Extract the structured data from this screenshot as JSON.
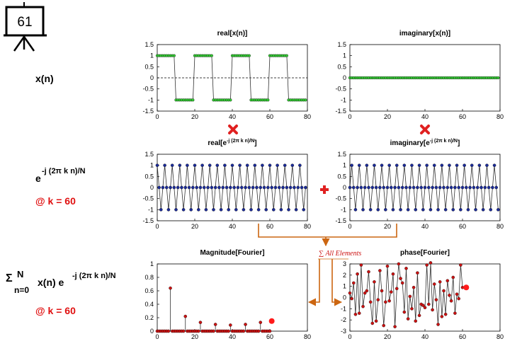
{
  "board_number": "61",
  "labels": {
    "xn": "x(n)",
    "exp_base": "e",
    "exp_sup": "-j (2π k n)/N",
    "k1": "@ k = 60",
    "sigma": "Σ",
    "sigma_sup": "N",
    "sigma_sub": "n=0",
    "sum_expr": "x(n) e",
    "sum_sup": "-j (2π k n)/N",
    "k2": "@ k = 60"
  },
  "flow_label": "∑ All Elements",
  "colors": {
    "input_marker": "#33cc33",
    "kernel_marker": "#1a2a99",
    "result_marker": "#cc1111",
    "highlight": "#ff1a1a",
    "arrow": "#cc6611",
    "operator": "#e02020"
  },
  "icons": {
    "multiply_top": "multiply-icon",
    "multiply_right": "multiply-icon",
    "plus": "plus-icon",
    "board": "presentation-board-icon"
  },
  "chart_data": [
    {
      "id": "c1",
      "type": "stem",
      "title_main": "real[x(n)]",
      "title_sup": "",
      "xlim": [
        0,
        80
      ],
      "ylim": [
        -1.5,
        1.5
      ],
      "xticks": [
        "0",
        "20",
        "40",
        "60",
        "80"
      ],
      "yticks": [
        "1.5",
        "1",
        "0.5",
        "0",
        "-0.5",
        "-1",
        "-1.5"
      ],
      "x_start": 0,
      "values": [
        1,
        1,
        1,
        1,
        1,
        1,
        1,
        1,
        1,
        1,
        -1,
        -1,
        -1,
        -1,
        -1,
        -1,
        -1,
        -1,
        -1,
        -1,
        1,
        1,
        1,
        1,
        1,
        1,
        1,
        1,
        1,
        1,
        -1,
        -1,
        -1,
        -1,
        -1,
        -1,
        -1,
        -1,
        -1,
        -1,
        1,
        1,
        1,
        1,
        1,
        1,
        1,
        1,
        1,
        1,
        -1,
        -1,
        -1,
        -1,
        -1,
        -1,
        -1,
        -1,
        -1,
        -1,
        1,
        1,
        1,
        1,
        1,
        1,
        1,
        1,
        1,
        1,
        -1,
        -1,
        -1,
        -1,
        -1,
        -1,
        -1,
        -1,
        -1,
        -1
      ],
      "zero_line": true
    },
    {
      "id": "c2",
      "type": "stem",
      "title_main": "imaginary[x(n)]",
      "title_sup": "",
      "xlim": [
        0,
        80
      ],
      "ylim": [
        -1.5,
        1.5
      ],
      "xticks": [
        "0",
        "20",
        "40",
        "60",
        "80"
      ],
      "yticks": [
        "1.5",
        "1",
        "0.5",
        "0",
        "-0.5",
        "-1",
        "-1.5"
      ],
      "x_start": 0,
      "values": [
        0,
        0,
        0,
        0,
        0,
        0,
        0,
        0,
        0,
        0,
        0,
        0,
        0,
        0,
        0,
        0,
        0,
        0,
        0,
        0,
        0,
        0,
        0,
        0,
        0,
        0,
        0,
        0,
        0,
        0,
        0,
        0,
        0,
        0,
        0,
        0,
        0,
        0,
        0,
        0,
        0,
        0,
        0,
        0,
        0,
        0,
        0,
        0,
        0,
        0,
        0,
        0,
        0,
        0,
        0,
        0,
        0,
        0,
        0,
        0,
        0,
        0,
        0,
        0,
        0,
        0,
        0,
        0,
        0,
        0,
        0,
        0,
        0,
        0,
        0,
        0,
        0,
        0,
        0,
        0
      ],
      "zero_line": true
    },
    {
      "id": "c3",
      "type": "stem",
      "title_main": "real[e",
      "title_sup": "-j (2π k n)/N",
      "xlim": [
        0,
        80
      ],
      "ylim": [
        -1.5,
        1.5
      ],
      "xticks": [
        "0",
        "20",
        "40",
        "60",
        "80"
      ],
      "yticks": [
        "1.5",
        "1",
        "0.5",
        "0",
        "-0.5",
        "-1",
        "-1.5"
      ],
      "x_start": 0,
      "values": [
        1,
        0,
        -1,
        0,
        1,
        0,
        -1,
        0,
        1,
        0,
        -1,
        0,
        1,
        0,
        -1,
        0,
        1,
        0,
        -1,
        0,
        1,
        0,
        -1,
        0,
        1,
        0,
        -1,
        0,
        1,
        0,
        -1,
        0,
        1,
        0,
        -1,
        0,
        1,
        0,
        -1,
        0,
        1,
        0,
        -1,
        0,
        1,
        0,
        -1,
        0,
        1,
        0,
        -1,
        0,
        1,
        0,
        -1,
        0,
        1,
        0,
        -1,
        0,
        1,
        0,
        -1,
        0,
        1,
        0,
        -1,
        0,
        1,
        0,
        -1,
        0,
        1,
        0,
        -1,
        0,
        1,
        0,
        -1,
        0
      ],
      "zero_line": false
    },
    {
      "id": "c4",
      "type": "stem",
      "title_main": "imaginary[e",
      "title_sup": "-j (2π k n)/N",
      "xlim": [
        0,
        80
      ],
      "ylim": [
        -1.5,
        1.5
      ],
      "xticks": [
        "0",
        "20",
        "40",
        "60",
        "80"
      ],
      "yticks": [
        "1.5",
        "1",
        "0.5",
        "0",
        "-0.5",
        "-1",
        "-1.5"
      ],
      "x_start": 0,
      "values": [
        0,
        1,
        0,
        -1,
        0,
        1,
        0,
        -1,
        0,
        1,
        0,
        -1,
        0,
        1,
        0,
        -1,
        0,
        1,
        0,
        -1,
        0,
        1,
        0,
        -1,
        0,
        1,
        0,
        -1,
        0,
        1,
        0,
        -1,
        0,
        1,
        0,
        -1,
        0,
        1,
        0,
        -1,
        0,
        1,
        0,
        -1,
        0,
        1,
        0,
        -1,
        0,
        1,
        0,
        -1,
        0,
        1,
        0,
        -1,
        0,
        1,
        0,
        -1,
        0,
        1,
        0,
        -1,
        0,
        1,
        0,
        -1,
        0,
        1,
        0,
        -1,
        0,
        1,
        0,
        -1,
        0,
        1,
        0,
        -1
      ],
      "zero_line": false
    },
    {
      "id": "c5",
      "type": "stem",
      "title_main": "Magnitude[Fourier]",
      "title_sup": "",
      "xlim": [
        0,
        80
      ],
      "ylim": [
        0,
        1
      ],
      "xticks": [
        "0",
        "20",
        "40",
        "60",
        "80"
      ],
      "yticks": [
        "1",
        "0.8",
        "0.6",
        "0.4",
        "0.2",
        "0"
      ],
      "x_start": 0,
      "values": [
        0,
        0,
        0,
        0,
        0,
        0,
        0,
        0.64,
        0,
        0,
        0,
        0,
        0,
        0,
        0,
        0.22,
        0,
        0,
        0,
        0,
        0,
        0,
        0,
        0.13,
        0,
        0,
        0,
        0,
        0,
        0,
        0,
        0.1,
        0,
        0,
        0,
        0,
        0,
        0,
        0,
        0.09,
        0,
        0,
        0,
        0,
        0,
        0,
        0,
        0.1,
        0,
        0,
        0,
        0,
        0,
        0,
        0,
        0.13,
        0,
        0,
        0,
        0,
        0
      ],
      "highlight": {
        "x": 61,
        "y": 0.15
      },
      "zero_line": false,
      "connect": false
    },
    {
      "id": "c6",
      "type": "stem",
      "title_main": "phase[Fourier]",
      "title_sup": "",
      "xlim": [
        0,
        80
      ],
      "ylim": [
        -3,
        3
      ],
      "xticks": [
        "0",
        "20",
        "40",
        "60",
        "80"
      ],
      "yticks": [
        "3",
        "2",
        "1",
        "0",
        "-1",
        "-2",
        "-3"
      ],
      "x_start": 0,
      "values": [
        0.4,
        -0.1,
        1.3,
        -1.5,
        2.1,
        -1.4,
        2.9,
        -0.8,
        0.4,
        0.6,
        2.3,
        -0.4,
        -2.3,
        1.4,
        -2.1,
        -0.2,
        2.4,
        0.6,
        -2.5,
        -0.4,
        2.8,
        -0.3,
        0.5,
        2.1,
        -2.6,
        0.8,
        3.0,
        1.7,
        1.3,
        -1.3,
        2.6,
        -1.9,
        0.1,
        -1.0,
        0.9,
        -2.1,
        2.2,
        -1.6,
        -0.6,
        -0.7,
        -0.9,
        2.9,
        -0.6,
        3.1,
        -1.1,
        1.2,
        -0.2,
        -2.4,
        1.4,
        -1.7,
        0.6,
        -1.5,
        1.5,
        0.2,
        -0.3,
        1.8,
        -1.4,
        0.3,
        -0.1,
        2.9,
        0.9
      ],
      "highlight": {
        "x": 62,
        "y": 0.9
      },
      "zero_line": false,
      "connect": true
    }
  ]
}
